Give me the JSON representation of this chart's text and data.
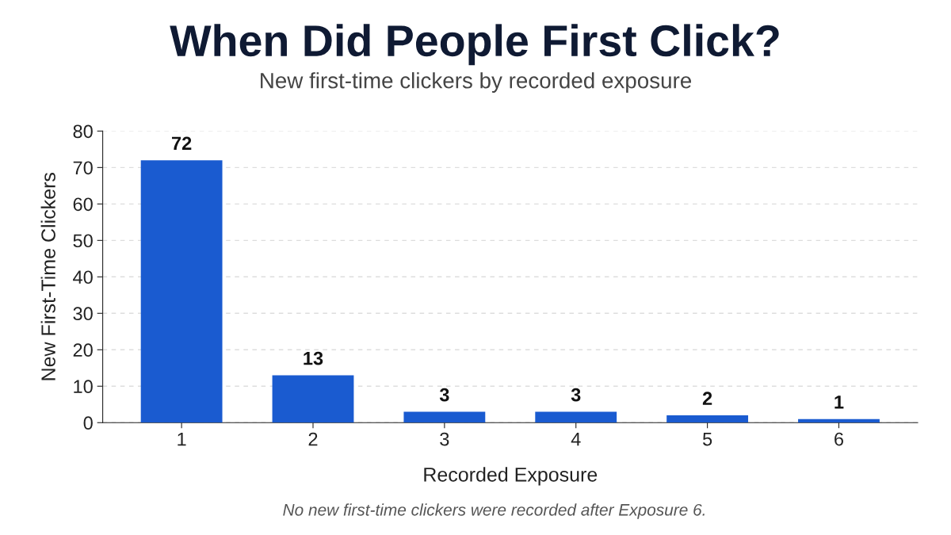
{
  "chart_data": {
    "type": "bar",
    "title": "When Did People First Click?",
    "subtitle": "New first-time clickers by recorded exposure",
    "xlabel": "Recorded Exposure",
    "ylabel": "New First-Time Clickers",
    "categories": [
      "1",
      "2",
      "3",
      "4",
      "5",
      "6"
    ],
    "values": [
      72,
      13,
      3,
      3,
      2,
      1
    ],
    "color": "#1a5bd0",
    "ylim": [
      0,
      80
    ],
    "yticks": [
      0,
      10,
      20,
      30,
      40,
      50,
      60,
      70,
      80
    ],
    "grid": "y",
    "data_labels": true,
    "annotations": [
      "No new first-time clickers were recorded after Exposure 6."
    ]
  }
}
